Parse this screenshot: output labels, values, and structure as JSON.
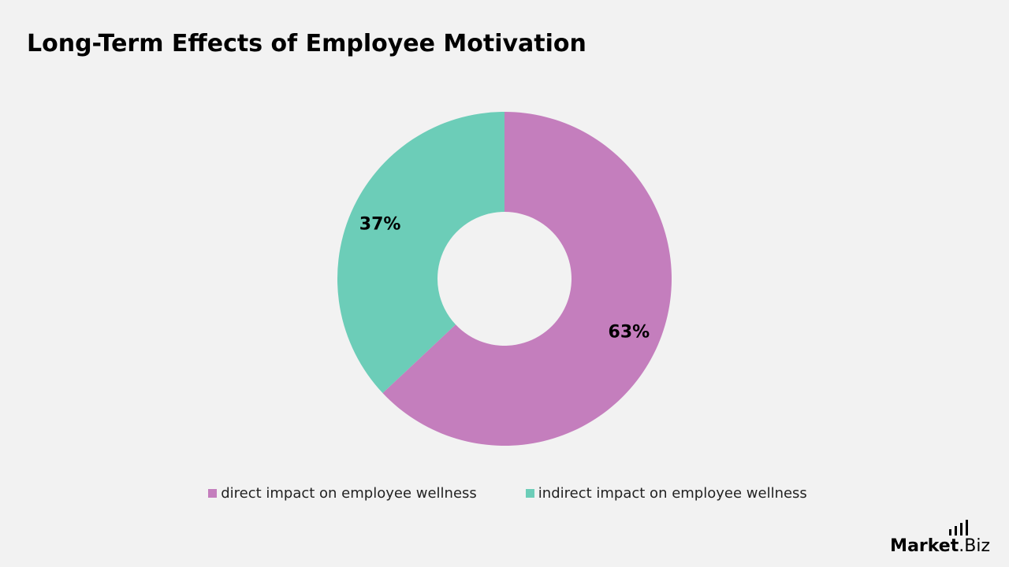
{
  "chart_data": {
    "type": "pie",
    "title": "Long-Term Effects of Employee Motivation",
    "donut": true,
    "start_angle_deg": 0,
    "slices": [
      {
        "label": "direct impact on employee wellness",
        "value": 63,
        "display": "63%",
        "color": "#c47ebd"
      },
      {
        "label": "indirect impact on employee wellness",
        "value": 37,
        "display": "37%",
        "color": "#6ccdb8"
      }
    ],
    "legend_position": "bottom-center"
  },
  "brand": {
    "name_main": "Market",
    "name_suffix": ".Biz"
  },
  "colors": {
    "background": "#f2f2f2",
    "title": "#000000",
    "text": "#222222"
  }
}
